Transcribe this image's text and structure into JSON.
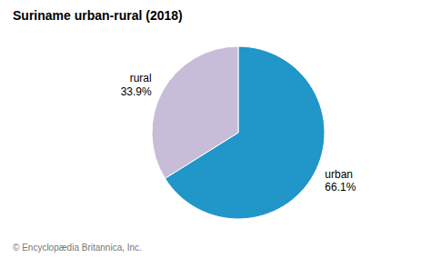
{
  "chart_data": {
    "type": "pie",
    "title": "Suriname urban-rural (2018)",
    "categories": [
      "urban",
      "rural"
    ],
    "values": [
      66.1,
      33.9
    ],
    "value_labels": [
      "66.1%",
      "33.9%"
    ],
    "data_labels": true,
    "colors": [
      "#2196c8",
      "#c8bdd8"
    ],
    "annotations": [
      "© Encyclopædia Britannica, Inc."
    ]
  }
}
